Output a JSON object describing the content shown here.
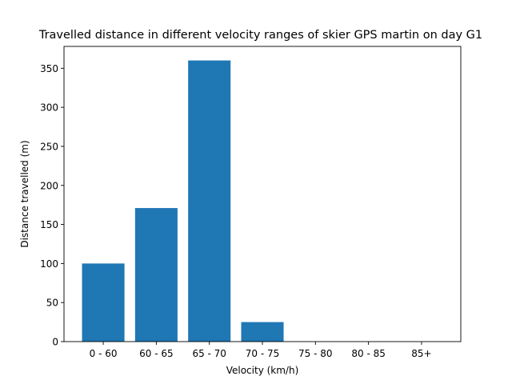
{
  "chart_data": {
    "type": "bar",
    "title": "Travelled distance in different velocity ranges of skier GPS martin on day G1",
    "xlabel": "Velocity (km/h)",
    "ylabel": "Distance travelled (m)",
    "categories": [
      "0 - 60",
      "60 - 65",
      "65 - 70",
      "70 - 75",
      "75 - 80",
      "80 - 85",
      "85+"
    ],
    "values": [
      100,
      171,
      360,
      25,
      0,
      0,
      0
    ],
    "ylim": [
      0,
      378
    ],
    "yticks": [
      0,
      50,
      100,
      150,
      200,
      250,
      300,
      350
    ],
    "grid": false,
    "bar_color": "#1f77b4"
  }
}
